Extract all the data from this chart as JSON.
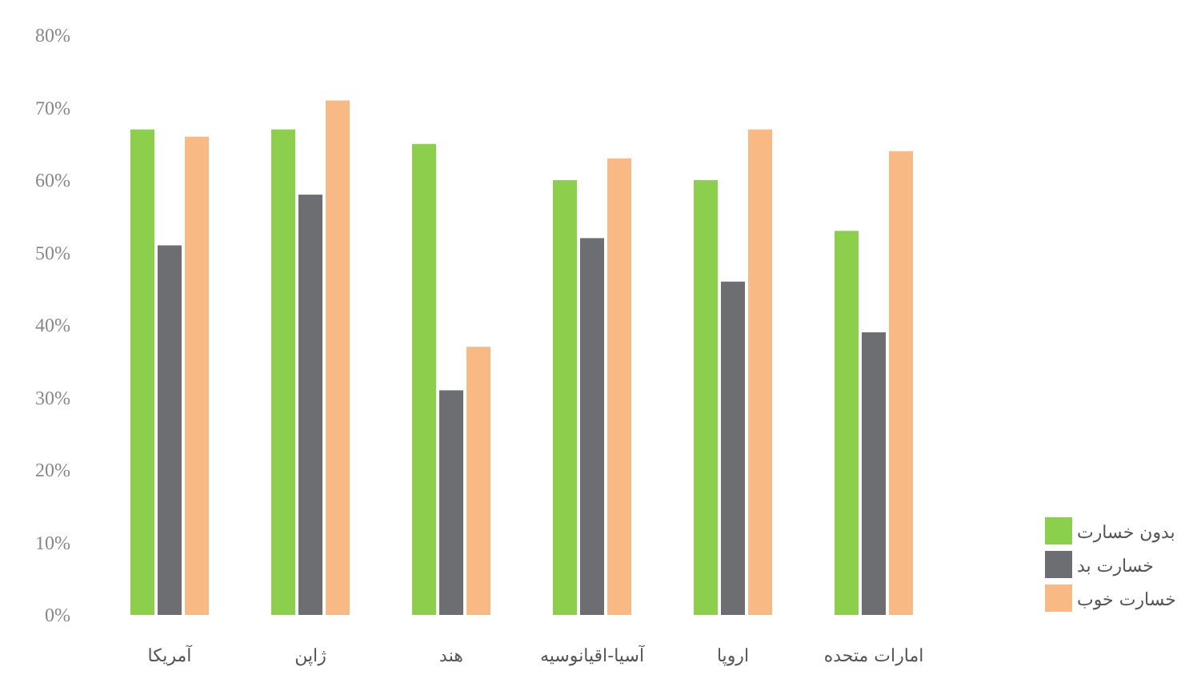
{
  "chart_data": {
    "type": "bar",
    "categories": [
      "آمریکا",
      "ژاپن",
      "هند",
      "آسیا-اقیانوسیه",
      "اروپا",
      "امارات متحده"
    ],
    "series": [
      {
        "name": "بدون خسارت",
        "color": "#8ccf4d",
        "values": [
          67,
          67,
          65,
          60,
          60,
          53
        ]
      },
      {
        "name": "خسارت بد",
        "color": "#6d6e72",
        "values": [
          51,
          58,
          31,
          52,
          46,
          39
        ]
      },
      {
        "name": "خسارت خوب",
        "color": "#f8b984",
        "values": [
          66,
          71,
          37,
          63,
          67,
          64
        ]
      }
    ],
    "ylim": [
      0,
      80
    ],
    "yticks": [
      {
        "value": 0,
        "label": "0%"
      },
      {
        "value": 10,
        "label": "10%"
      },
      {
        "value": 20,
        "label": "20%"
      },
      {
        "value": 30,
        "label": "30%"
      },
      {
        "value": 40,
        "label": "40%"
      },
      {
        "value": 50,
        "label": "50%"
      },
      {
        "value": 60,
        "label": "60%"
      },
      {
        "value": 70,
        "label": "70%"
      },
      {
        "value": 80,
        "label": "80%"
      }
    ],
    "grid": false,
    "legend": "bottom right"
  }
}
